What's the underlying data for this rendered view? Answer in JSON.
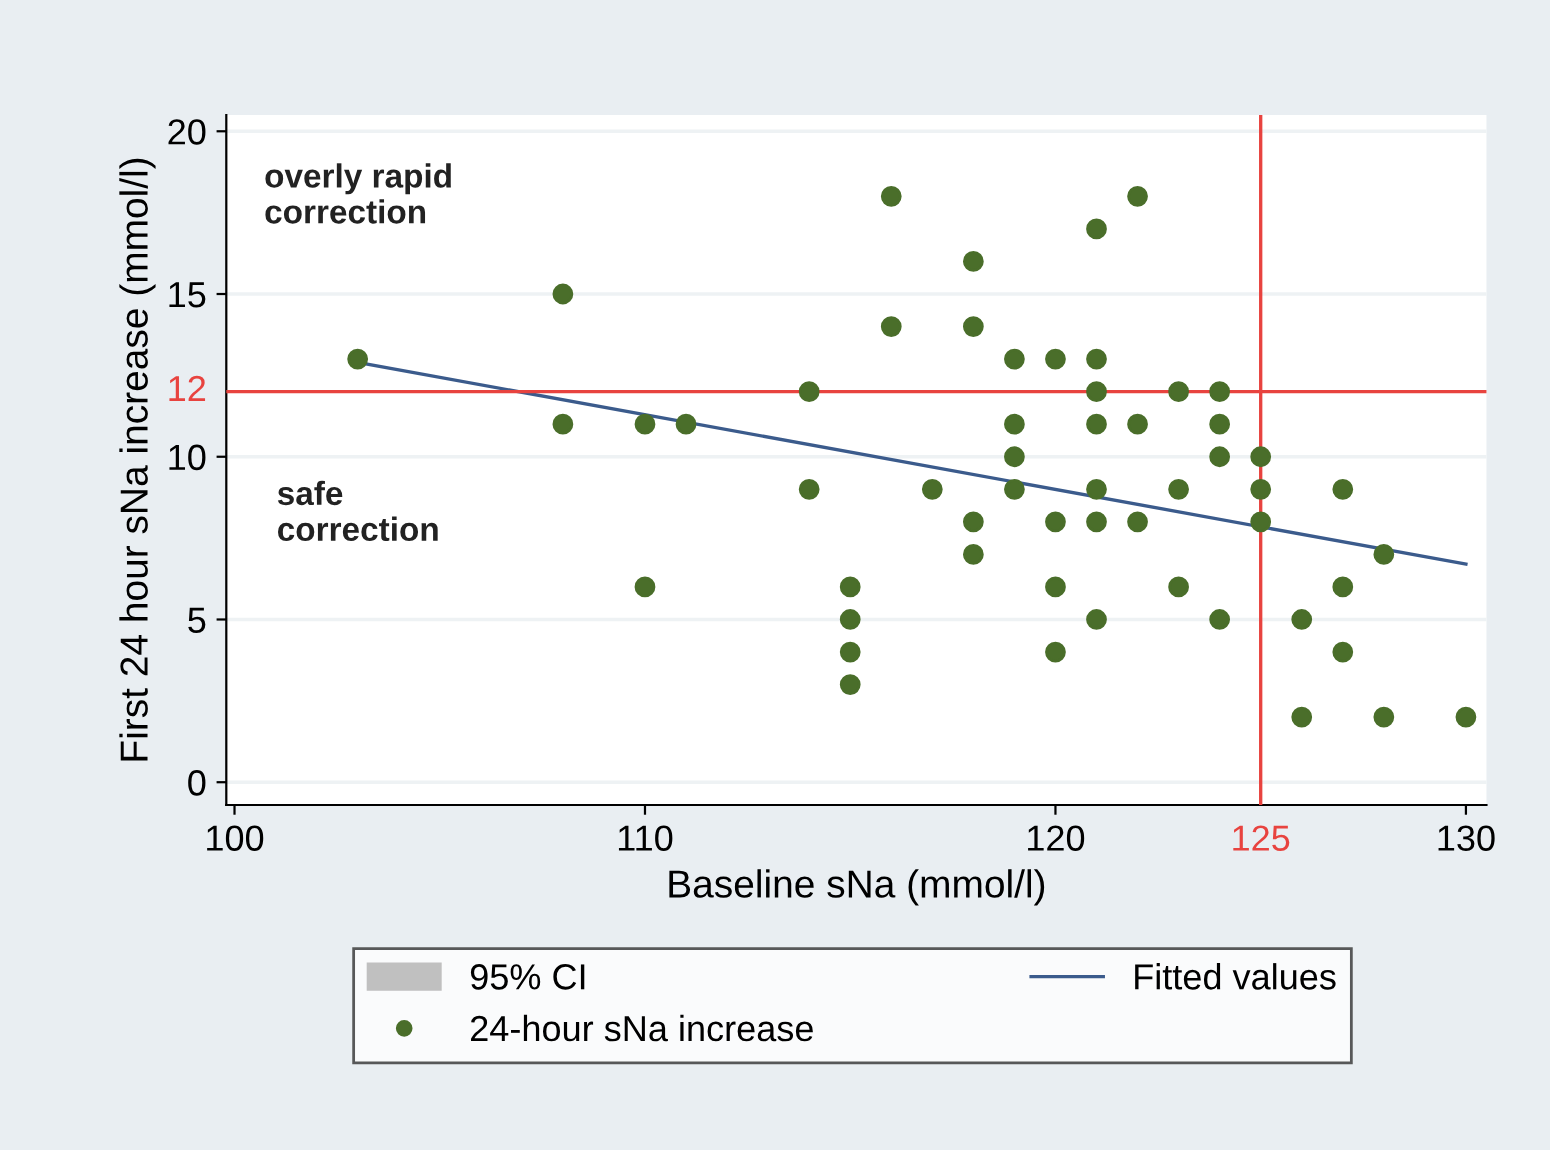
{
  "chart_data": {
    "type": "scatter",
    "xlabel": "Baseline sNa (mmol/l)",
    "ylabel": "First 24 hour sNa increase (mmol/l)",
    "xlim": [
      99.8,
      130.5
    ],
    "xticks": [
      100,
      110,
      120,
      130
    ],
    "ylim": [
      -0.7,
      20.5
    ],
    "yticks": [
      0,
      5,
      10,
      15,
      20
    ],
    "grid": "y",
    "legend": "bottom",
    "marker": "circle",
    "annotations": [
      "overly rapid\ncorrection",
      "safe\ncorrection"
    ],
    "ref_lines": [
      {
        "axis": "y",
        "value": 12,
        "label": "12",
        "color": "#e8433f"
      },
      {
        "axis": "x",
        "value": 125,
        "label": "125",
        "color": "#e8433f"
      }
    ],
    "series": [
      {
        "name": "95% CI",
        "type": "area",
        "color": "#c0c0c0"
      },
      {
        "name": "Fitted values",
        "type": "line",
        "color": "#3b5b8c",
        "marker": "none",
        "x": [
          103,
          130
        ],
        "values": [
          12.9,
          6.7
        ]
      },
      {
        "name": "24-hour sNa increase",
        "color": "#4a6e2a",
        "x": [
          103,
          108,
          108,
          110,
          111,
          114,
          114,
          110,
          115,
          115,
          115,
          115,
          116,
          116,
          117,
          118,
          118,
          118,
          118,
          119,
          119,
          119,
          119,
          120,
          120,
          120,
          120,
          121,
          121,
          121,
          121,
          121,
          121,
          121,
          122,
          122,
          122,
          123,
          123,
          123,
          124,
          124,
          124,
          124,
          125,
          125,
          125,
          126,
          126,
          127,
          127,
          127,
          128,
          128,
          130
        ],
        "values": [
          13,
          15,
          11,
          11,
          11,
          12,
          9,
          6,
          6,
          5,
          4,
          3,
          18,
          14,
          9,
          16,
          14,
          8,
          7,
          13,
          11,
          10,
          9,
          13,
          8,
          6,
          4,
          17,
          13,
          12,
          11,
          9,
          8,
          5,
          18,
          11,
          8,
          12,
          9,
          6,
          12,
          11,
          10,
          5,
          10,
          9,
          8,
          5,
          2,
          9,
          6,
          4,
          7,
          2,
          2
        ]
      }
    ]
  }
}
